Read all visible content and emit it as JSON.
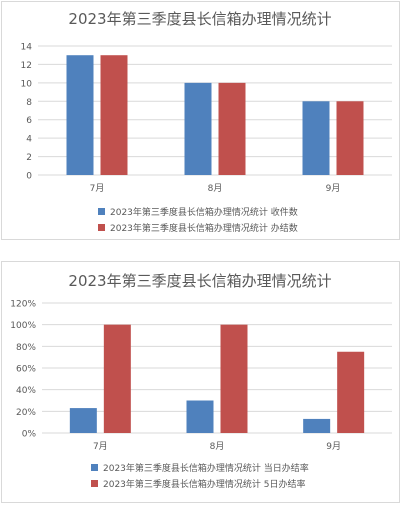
{
  "chart_data": [
    {
      "type": "bar",
      "title": "2023年第三季度县长信箱办理情况统计",
      "categories": [
        "7月",
        "8月",
        "9月"
      ],
      "ylim": [
        0,
        14
      ],
      "yticks": [
        "0",
        "2",
        "4",
        "6",
        "8",
        "10",
        "12",
        "14"
      ],
      "grid": true,
      "legend_position": "bottom",
      "series": [
        {
          "name": "2023年第三季度县长信箱办理情况统计 收件数",
          "values": [
            13,
            10,
            8
          ],
          "color": "#4F81BD"
        },
        {
          "name": "2023年第三季度县长信箱办理情况统计 办结数",
          "values": [
            13,
            10,
            8
          ],
          "color": "#C0504D"
        }
      ]
    },
    {
      "type": "bar",
      "title": "2023年第三季度县长信箱办理情况统计",
      "categories": [
        "7月",
        "8月",
        "9月"
      ],
      "ylim": [
        0,
        1.2
      ],
      "yticks": [
        "0%",
        "20%",
        "40%",
        "60%",
        "80%",
        "100%",
        "120%"
      ],
      "grid": true,
      "legend_position": "bottom",
      "series": [
        {
          "name": "2023年第三季度县长信箱办理情况统计 当日办结率",
          "values": [
            0.23,
            0.3,
            0.13
          ],
          "color": "#4F81BD"
        },
        {
          "name": "2023年第三季度县长信箱办理情况统计 5日办结率",
          "values": [
            1.0,
            1.0,
            0.75
          ],
          "color": "#C0504D"
        }
      ]
    }
  ]
}
